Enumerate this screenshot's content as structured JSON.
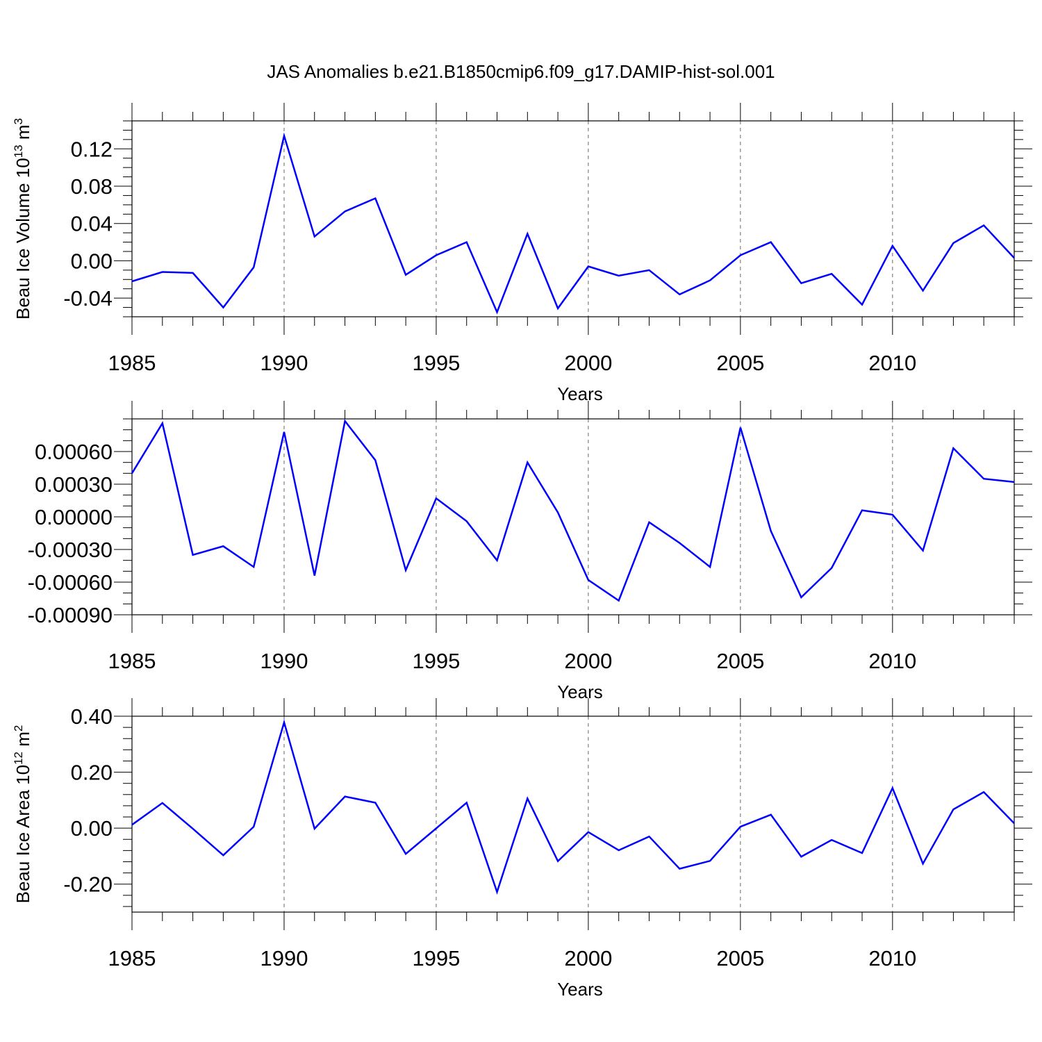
{
  "title": "JAS Anomalies b.e21.B1850cmip6.f09_g17.DAMIP-hist-sol.001",
  "chart_data": [
    {
      "type": "line",
      "id": "volume",
      "ylabel_main": "Beau Ice Volume 10",
      "ylabel_sup1": "13",
      "ylabel_mid": " m",
      "ylabel_sup2": "3",
      "xlabel": "Years",
      "xlim": [
        1985,
        2014
      ],
      "ylim": [
        -0.06,
        0.15
      ],
      "yticks": [
        -0.04,
        0.0,
        0.04,
        0.08,
        0.12
      ],
      "ytick_labels": [
        "-0.04",
        "0.00",
        "0.04",
        "0.08",
        "0.12"
      ],
      "yminor_step": 0.01,
      "xticks": [
        1985,
        1990,
        1995,
        2000,
        2005,
        2010
      ],
      "xtick_labels": [
        "1985",
        "1990",
        "1995",
        "2000",
        "2005",
        "2010"
      ],
      "line_color": "#0000ff",
      "x": [
        1985,
        1986,
        1987,
        1988,
        1989,
        1990,
        1991,
        1992,
        1993,
        1994,
        1995,
        1996,
        1997,
        1998,
        1999,
        2000,
        2001,
        2002,
        2003,
        2004,
        2005,
        2006,
        2007,
        2008,
        2009,
        2010,
        2011,
        2012,
        2013,
        2014
      ],
      "values": [
        -0.022,
        -0.012,
        -0.013,
        -0.05,
        -0.007,
        0.134,
        0.026,
        0.053,
        0.067,
        -0.015,
        0.006,
        0.02,
        -0.055,
        0.029,
        -0.051,
        -0.006,
        -0.016,
        -0.01,
        -0.036,
        -0.021,
        0.006,
        0.02,
        -0.024,
        -0.014,
        -0.047,
        0.016,
        -0.032,
        0.019,
        0.038,
        0.003
      ]
    },
    {
      "type": "line",
      "id": "middle",
      "ylabel_main": "",
      "xlabel": "Years",
      "xlim": [
        1985,
        2014
      ],
      "ylim": [
        -0.0009,
        0.0009
      ],
      "yticks": [
        -0.0009,
        -0.0006,
        -0.0003,
        0.0,
        0.0003,
        0.0006
      ],
      "ytick_labels": [
        "-0.00090",
        "-0.00060",
        "-0.00030",
        "0.00000",
        "0.00030",
        "0.00060"
      ],
      "yminor_step": 0.0001,
      "xticks": [
        1985,
        1990,
        1995,
        2000,
        2005,
        2010
      ],
      "xtick_labels": [
        "1985",
        "1990",
        "1995",
        "2000",
        "2005",
        "2010"
      ],
      "line_color": "#0000ff",
      "x": [
        1985,
        1986,
        1987,
        1988,
        1989,
        1990,
        1991,
        1992,
        1993,
        1994,
        1995,
        1996,
        1997,
        1998,
        1999,
        2000,
        2001,
        2002,
        2003,
        2004,
        2005,
        2006,
        2007,
        2008,
        2009,
        2010,
        2011,
        2012,
        2013,
        2014
      ],
      "values": [
        0.0004,
        0.00086,
        -0.00035,
        -0.00027,
        -0.00046,
        0.00078,
        -0.00054,
        0.00088,
        0.00052,
        -0.00049,
        0.00017,
        -4e-05,
        -0.0004,
        0.0005,
        4e-05,
        -0.00058,
        -0.00077,
        -5e-05,
        -0.00024,
        -0.00046,
        0.00082,
        -0.00013,
        -0.00074,
        -0.00047,
        6e-05,
        2e-05,
        -0.00031,
        0.00063,
        0.00035,
        0.00032
      ]
    },
    {
      "type": "line",
      "id": "area",
      "ylabel_main": "Beau Ice Area 10",
      "ylabel_sup1": "12",
      "ylabel_mid": " m",
      "ylabel_sup2": "2",
      "xlabel": "Years",
      "xlim": [
        1985,
        2014
      ],
      "ylim": [
        -0.3,
        0.4
      ],
      "yticks": [
        -0.2,
        0.0,
        0.2,
        0.4
      ],
      "ytick_labels": [
        "-0.20",
        "0.00",
        "0.20",
        "0.40"
      ],
      "yminor_step": 0.04,
      "xticks": [
        1985,
        1990,
        1995,
        2000,
        2005,
        2010
      ],
      "xtick_labels": [
        "1985",
        "1990",
        "1995",
        "2000",
        "2005",
        "2010"
      ],
      "line_color": "#0000ff",
      "x": [
        1985,
        1986,
        1987,
        1988,
        1989,
        1990,
        1991,
        1992,
        1993,
        1994,
        1995,
        1996,
        1997,
        1998,
        1999,
        2000,
        2001,
        2002,
        2003,
        2004,
        2005,
        2006,
        2007,
        2008,
        2009,
        2010,
        2011,
        2012,
        2013,
        2014
      ],
      "values": [
        0.012,
        0.09,
        -0.002,
        -0.097,
        0.005,
        0.378,
        -0.002,
        0.113,
        0.091,
        -0.092,
        -0.001,
        0.091,
        -0.228,
        0.106,
        -0.118,
        -0.014,
        -0.079,
        -0.03,
        -0.145,
        -0.117,
        0.005,
        0.048,
        -0.102,
        -0.042,
        -0.089,
        0.143,
        -0.127,
        0.067,
        0.129,
        0.017
      ]
    }
  ]
}
